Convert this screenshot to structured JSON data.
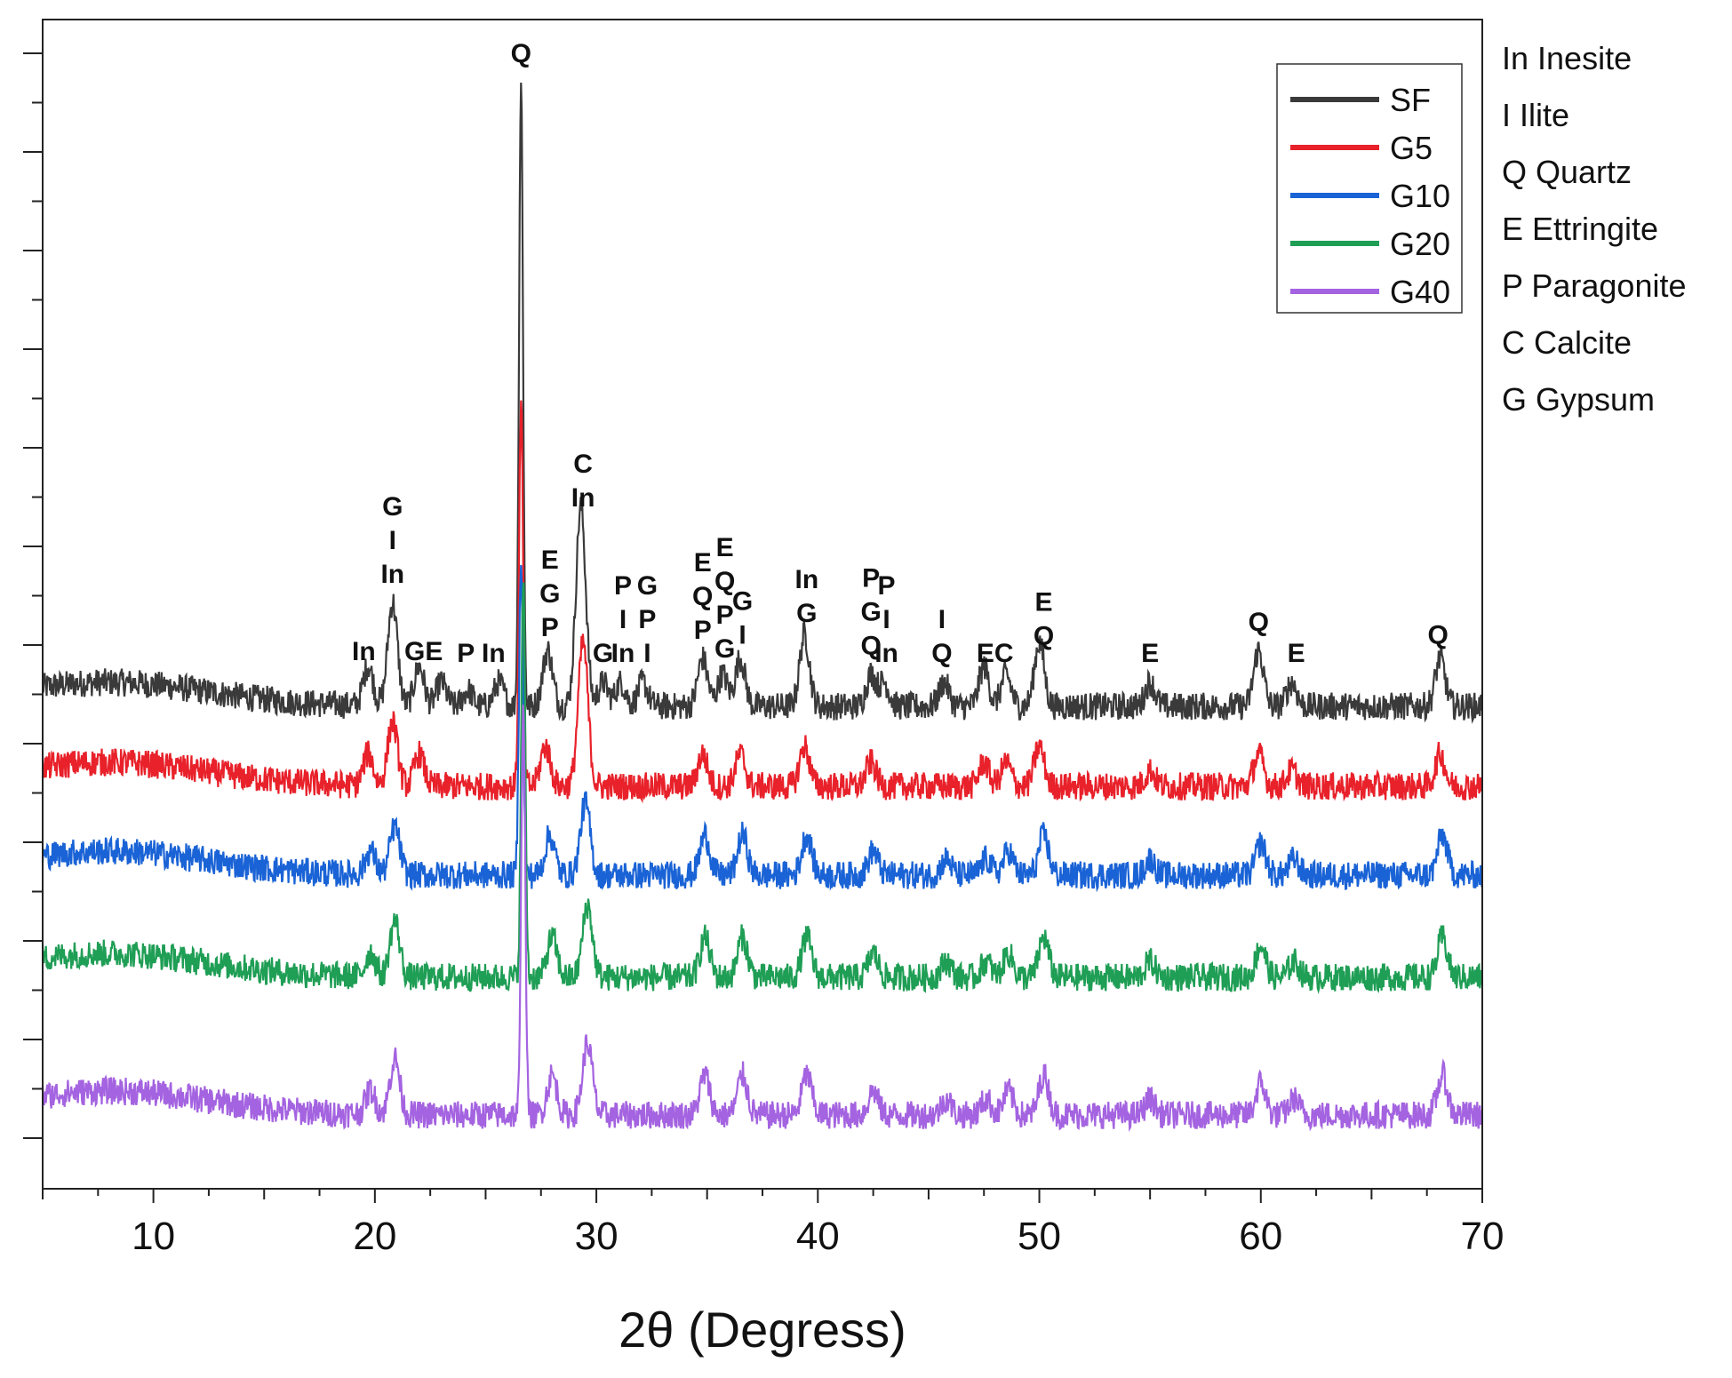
{
  "chart_data": {
    "type": "line",
    "title": "",
    "xlabel": "2θ (Degress)",
    "ylabel": "",
    "xlim": [
      5,
      70
    ],
    "x_ticks": [
      10,
      20,
      30,
      40,
      50,
      60,
      70
    ],
    "y_ticks_labeled": false,
    "legend_position": "top-right",
    "series": [
      {
        "name": "SF",
        "color": "#3a3a3a",
        "baseline": 0.0,
        "peaks": [
          [
            19.7,
            0.05
          ],
          [
            20.8,
            0.13
          ],
          [
            22.0,
            0.05
          ],
          [
            23.0,
            0.03
          ],
          [
            24.2,
            0.02
          ],
          [
            25.6,
            0.03
          ],
          [
            26.6,
            0.78
          ],
          [
            27.8,
            0.07
          ],
          [
            29.3,
            0.25
          ],
          [
            30.3,
            0.03
          ],
          [
            31.1,
            0.03
          ],
          [
            32.1,
            0.03
          ],
          [
            34.8,
            0.06
          ],
          [
            35.7,
            0.04
          ],
          [
            36.5,
            0.06
          ],
          [
            39.4,
            0.09
          ],
          [
            42.4,
            0.04
          ],
          [
            43.0,
            0.03
          ],
          [
            45.7,
            0.03
          ],
          [
            47.5,
            0.05
          ],
          [
            48.5,
            0.04
          ],
          [
            50.0,
            0.08
          ],
          [
            55.0,
            0.03
          ],
          [
            59.9,
            0.07
          ],
          [
            61.4,
            0.03
          ],
          [
            68.1,
            0.06
          ]
        ]
      },
      {
        "name": "G5",
        "color": "#e8212a",
        "baseline": 0.0,
        "peaks": [
          [
            19.7,
            0.04
          ],
          [
            20.8,
            0.08
          ],
          [
            22.0,
            0.04
          ],
          [
            26.6,
            0.48
          ],
          [
            27.7,
            0.05
          ],
          [
            29.4,
            0.18
          ],
          [
            34.8,
            0.04
          ],
          [
            36.5,
            0.04
          ],
          [
            39.4,
            0.05
          ],
          [
            42.4,
            0.03
          ],
          [
            47.5,
            0.03
          ],
          [
            48.5,
            0.03
          ],
          [
            50.0,
            0.05
          ],
          [
            55.0,
            0.02
          ],
          [
            59.9,
            0.04
          ],
          [
            61.4,
            0.02
          ],
          [
            68.1,
            0.04
          ]
        ]
      },
      {
        "name": "G10",
        "color": "#1a63d6",
        "baseline": 0.0,
        "peaks": [
          [
            19.8,
            0.03
          ],
          [
            20.9,
            0.06
          ],
          [
            26.6,
            0.4
          ],
          [
            27.9,
            0.05
          ],
          [
            29.5,
            0.09
          ],
          [
            34.9,
            0.05
          ],
          [
            36.6,
            0.05
          ],
          [
            39.5,
            0.05
          ],
          [
            42.5,
            0.03
          ],
          [
            45.8,
            0.02
          ],
          [
            47.6,
            0.02
          ],
          [
            48.6,
            0.03
          ],
          [
            50.2,
            0.05
          ],
          [
            55.0,
            0.02
          ],
          [
            60.0,
            0.04
          ],
          [
            61.5,
            0.02
          ],
          [
            68.2,
            0.05
          ]
        ]
      },
      {
        "name": "G20",
        "color": "#1f9e55",
        "baseline": 0.0,
        "peaks": [
          [
            19.8,
            0.03
          ],
          [
            20.9,
            0.07
          ],
          [
            26.7,
            0.5
          ],
          [
            28.0,
            0.05
          ],
          [
            29.6,
            0.09
          ],
          [
            34.9,
            0.05
          ],
          [
            36.6,
            0.05
          ],
          [
            39.5,
            0.05
          ],
          [
            42.5,
            0.03
          ],
          [
            45.8,
            0.02
          ],
          [
            47.6,
            0.02
          ],
          [
            48.6,
            0.03
          ],
          [
            50.2,
            0.05
          ],
          [
            55.0,
            0.02
          ],
          [
            60.0,
            0.04
          ],
          [
            61.5,
            0.02
          ],
          [
            68.2,
            0.05
          ]
        ]
      },
      {
        "name": "G40",
        "color": "#a463e0",
        "baseline": 0.0,
        "peaks": [
          [
            19.8,
            0.03
          ],
          [
            20.9,
            0.07
          ],
          [
            26.7,
            0.52
          ],
          [
            28.0,
            0.05
          ],
          [
            29.6,
            0.09
          ],
          [
            34.9,
            0.05
          ],
          [
            36.6,
            0.05
          ],
          [
            39.5,
            0.05
          ],
          [
            42.5,
            0.03
          ],
          [
            45.8,
            0.02
          ],
          [
            47.6,
            0.02
          ],
          [
            48.6,
            0.03
          ],
          [
            50.2,
            0.05
          ],
          [
            55.0,
            0.02
          ],
          [
            60.0,
            0.04
          ],
          [
            61.5,
            0.02
          ],
          [
            68.2,
            0.05
          ]
        ]
      }
    ],
    "peak_annotations": [
      {
        "x": 26.6,
        "lines": [
          "Q"
        ],
        "bold": false
      },
      {
        "x": 19.5,
        "lines": [
          "In"
        ],
        "bold": false
      },
      {
        "x": 20.8,
        "lines": [
          "G",
          "I",
          "In"
        ],
        "bold": true
      },
      {
        "x": 22.2,
        "lines": [
          "GE"
        ],
        "bold": true
      },
      {
        "x": 24.8,
        "lines": [
          "P In"
        ],
        "bold": false
      },
      {
        "x": 27.9,
        "lines": [
          "E",
          "G",
          "P"
        ],
        "bold": true
      },
      {
        "x": 29.4,
        "lines": [
          "C",
          "In"
        ],
        "bold": true
      },
      {
        "x": 30.3,
        "lines": [
          "G"
        ],
        "bold": true
      },
      {
        "x": 31.2,
        "lines": [
          "P",
          "I",
          "In"
        ],
        "bold": true
      },
      {
        "x": 32.3,
        "lines": [
          "G",
          "P",
          "I"
        ],
        "bold": true
      },
      {
        "x": 34.8,
        "lines": [
          "E",
          "Q",
          "P"
        ],
        "bold": true
      },
      {
        "x": 35.8,
        "lines": [
          "E",
          "Q",
          "P",
          "G"
        ],
        "bold": true
      },
      {
        "x": 36.6,
        "lines": [
          "G",
          "I"
        ],
        "bold": true
      },
      {
        "x": 39.5,
        "lines": [
          "In",
          "G"
        ],
        "bold": true
      },
      {
        "x": 42.4,
        "lines": [
          "P",
          "G",
          "Q"
        ],
        "bold": true
      },
      {
        "x": 43.1,
        "lines": [
          "P",
          "I",
          "In"
        ],
        "bold": true
      },
      {
        "x": 45.6,
        "lines": [
          "I",
          "Q"
        ],
        "bold": true
      },
      {
        "x": 48.0,
        "lines": [
          "EC"
        ],
        "bold": true
      },
      {
        "x": 50.2,
        "lines": [
          "E",
          "Q"
        ],
        "bold": true
      },
      {
        "x": 55.0,
        "lines": [
          "E"
        ],
        "bold": true
      },
      {
        "x": 59.9,
        "lines": [
          "Q"
        ],
        "bold": true
      },
      {
        "x": 61.6,
        "lines": [
          "E"
        ],
        "bold": true
      },
      {
        "x": 68.0,
        "lines": [
          "Q"
        ],
        "bold": true
      }
    ],
    "mineral_key": [
      {
        "abbr": "In",
        "name": "Inesite"
      },
      {
        "abbr": "I",
        "name": "Ilite"
      },
      {
        "abbr": "Q",
        "name": "Quartz"
      },
      {
        "abbr": "E",
        "name": "Ettringite"
      },
      {
        "abbr": "P",
        "name": "Paragonite"
      },
      {
        "abbr": "C",
        "name": "Calcite"
      },
      {
        "abbr": "G",
        "name": "Gypsum"
      }
    ]
  }
}
